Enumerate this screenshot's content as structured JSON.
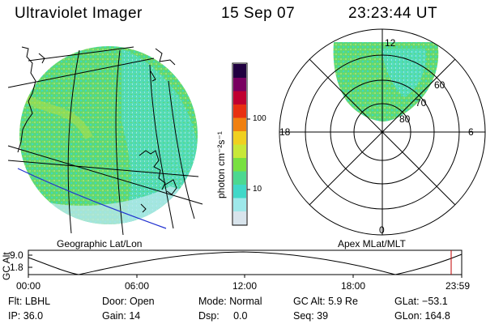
{
  "header": {
    "instrument": "Ultraviolet Imager",
    "date": "15 Sep 07",
    "time": "23:23:44 UT"
  },
  "colorbar": {
    "unit_label": "photon cm⁻²s⁻¹",
    "ticks": [
      "100",
      "10"
    ],
    "colors": [
      "#d8e4ec",
      "#9ee8ea",
      "#40d8c8",
      "#4cd890",
      "#78e040",
      "#c8e838",
      "#f0d020",
      "#f08010",
      "#e83010",
      "#c00030",
      "#780060",
      "#200040"
    ]
  },
  "left_panel": {
    "caption": "Geographic Lat/Lon"
  },
  "right_panel": {
    "caption": "Apex MLat/MLT",
    "mlt_labels": {
      "top": "12",
      "left": "18",
      "right": "6",
      "bottom": "0"
    },
    "lat_labels": [
      "60",
      "70",
      "80"
    ]
  },
  "altitude_plot": {
    "ylabel": "GC Alt",
    "yticks": [
      "9.0",
      "1.8"
    ],
    "xticks": [
      "00:00",
      "06:00",
      "12:00",
      "18:00",
      "23:59"
    ]
  },
  "info": {
    "flt": "Flt: LBHL",
    "door": "Door: Open",
    "mode": "Mode: Normal",
    "gc_alt": "GC Alt: 5.9 Re",
    "glat": "GLat: −53.1",
    "ip": "IP: 36.0",
    "gain": "Gain: 14",
    "dsp": "Dsp:     0.0",
    "seq": "Seq: 39",
    "glon": "GLon: 164.8"
  }
}
